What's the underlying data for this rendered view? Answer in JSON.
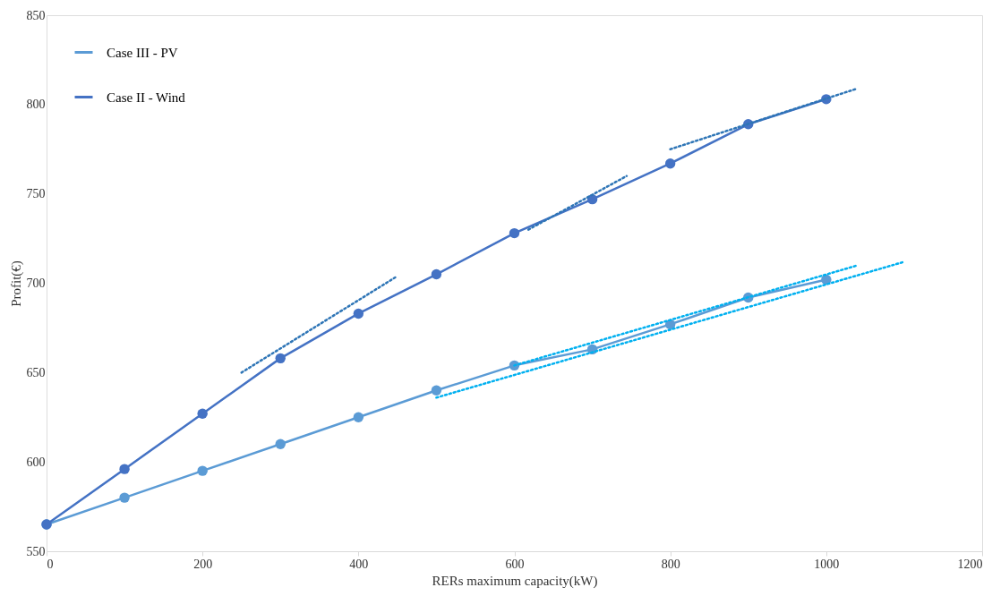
{
  "chart_data": {
    "type": "line",
    "xlabel": "RERs maximum  capacity(kW)",
    "ylabel": "Profit(€)",
    "x": [
      0,
      100,
      200,
      300,
      400,
      500,
      600,
      700,
      800,
      900,
      1000
    ],
    "xlim": [
      0,
      1200
    ],
    "xticks": [
      0,
      200,
      400,
      600,
      800,
      1000,
      1200
    ],
    "ylim": [
      550,
      850
    ],
    "yticks": [
      550,
      600,
      650,
      700,
      750,
      800,
      850
    ],
    "grid": false,
    "legend": "top left",
    "marker": "circle",
    "line_style": "solid",
    "series": [
      {
        "name": "Case III - PV",
        "color": "#5b9bd5",
        "values": [
          565,
          580,
          595,
          610,
          625,
          640,
          654,
          663,
          677,
          692,
          702
        ]
      },
      {
        "name": "Case II - Wind",
        "color": "#4472c4",
        "values": [
          565,
          596,
          627,
          658,
          683,
          705,
          728,
          747,
          767,
          789,
          803
        ]
      },
      {
        "type": "line",
        "color": "#2e75b6",
        "line_style": "dotted",
        "marker": "none",
        "x": [
          250,
          450
        ],
        "values": [
          650,
          704
        ]
      },
      {
        "type": "line",
        "color": "#2e75b6",
        "line_style": "dotted",
        "marker": "none",
        "x": [
          618,
          744
        ],
        "values": [
          730,
          760
        ]
      },
      {
        "type": "line",
        "color": "#2e75b6",
        "line_style": "dotted",
        "marker": "none",
        "x": [
          800,
          1040
        ],
        "values": [
          775,
          809
        ]
      },
      {
        "type": "line",
        "color": "#00b0f0",
        "line_style": "dotted",
        "marker": "none",
        "x": [
          500,
          1100
        ],
        "values": [
          636,
          712
        ]
      },
      {
        "type": "line",
        "color": "#00b0f0",
        "line_style": "dotted",
        "marker": "none",
        "x": [
          600,
          1040
        ],
        "values": [
          654,
          710
        ]
      }
    ]
  }
}
